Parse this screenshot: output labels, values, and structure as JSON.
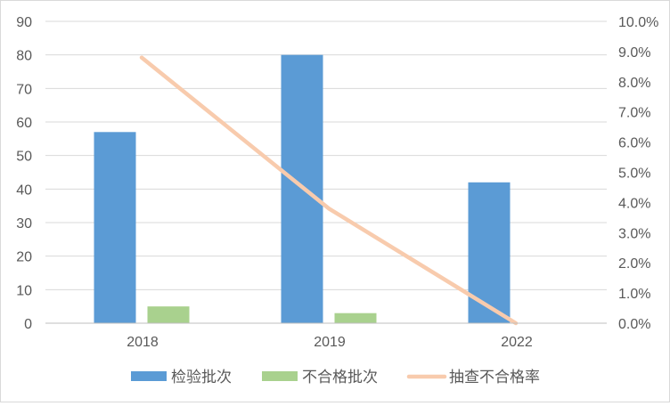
{
  "chart_data": {
    "type": "bar",
    "categories": [
      "2018",
      "2019",
      "2022"
    ],
    "series": [
      {
        "name": "检验批次",
        "kind": "bar",
        "axis": "left",
        "color": "#5b9bd5",
        "values": [
          57,
          80,
          42
        ]
      },
      {
        "name": "不合格批次",
        "kind": "bar",
        "axis": "left",
        "color": "#a9d18e",
        "values": [
          5,
          3,
          0
        ]
      },
      {
        "name": "抽查不合格率",
        "kind": "line",
        "axis": "right",
        "color": "#f8cbad",
        "values": [
          8.8,
          3.8,
          0.0
        ]
      }
    ],
    "y_left": {
      "ylim": [
        0,
        90
      ],
      "ticks": [
        "0",
        "10",
        "20",
        "30",
        "40",
        "50",
        "60",
        "70",
        "80",
        "90"
      ]
    },
    "y_right": {
      "ylim": [
        0,
        10
      ],
      "ticks": [
        "0.0%",
        "1.0%",
        "2.0%",
        "3.0%",
        "4.0%",
        "5.0%",
        "6.0%",
        "7.0%",
        "8.0%",
        "9.0%",
        "10.0%"
      ]
    },
    "grid": true,
    "legend_position": "bottom",
    "title": "",
    "xlabel": "",
    "ylabel": ""
  }
}
